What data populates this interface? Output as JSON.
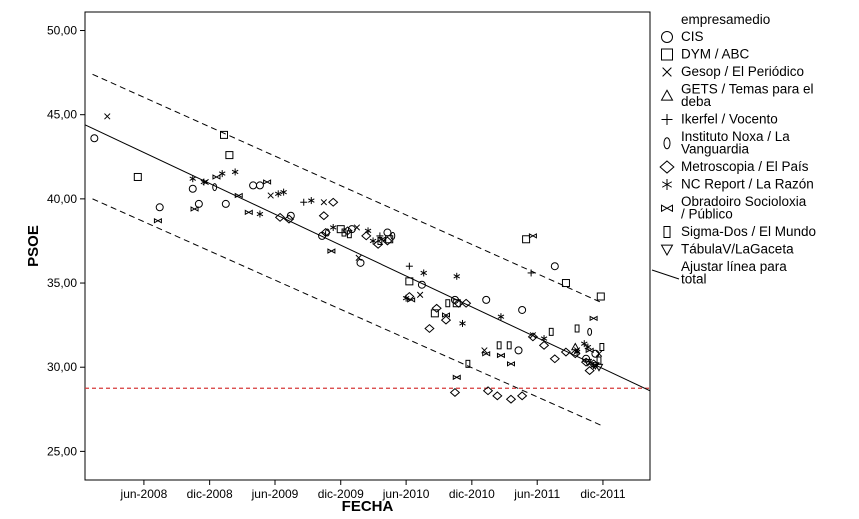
{
  "chart_data": {
    "type": "scatter",
    "xlabel": "FECHA",
    "ylabel": "PSOE",
    "x_ticks": [
      "jun-2008",
      "dic-2008",
      "jun-2009",
      "dic-2009",
      "jun-2010",
      "dic-2010",
      "jun-2011",
      "dic-2011"
    ],
    "y_ticks": [
      "25,00",
      "30,00",
      "35,00",
      "40,00",
      "45,00",
      "50,00"
    ],
    "xlim": [
      "2007-12-20",
      "2012-04-10"
    ],
    "ylim": [
      23.3,
      51.1
    ],
    "legend_title": "empresamedio",
    "legend_fit_label": "Ajustar línea para total",
    "reference_line": {
      "y": 28.75,
      "color": "#d63a3a"
    },
    "fit_line": {
      "x": [
        "2007-12-20",
        "2012-04-10"
      ],
      "y": [
        44.4,
        28.6
      ]
    },
    "ci_lower": {
      "x": [
        "2008-01-10",
        "2011-12-01"
      ],
      "y": [
        40.0,
        26.5
      ]
    },
    "ci_upper": {
      "x": [
        "2008-01-10",
        "2011-12-01"
      ],
      "y": [
        47.4,
        33.8
      ]
    },
    "series": [
      {
        "name": "CIS",
        "marker": "circle",
        "points": [
          [
            "2008-01-15",
            43.6
          ],
          [
            "2008-07-15",
            39.5
          ],
          [
            "2008-10-15",
            40.6
          ],
          [
            "2008-11-01",
            39.7
          ],
          [
            "2009-01-15",
            39.7
          ],
          [
            "2009-04-01",
            40.8
          ],
          [
            "2009-04-20",
            40.8
          ],
          [
            "2009-07-15",
            39.0
          ],
          [
            "2009-10-10",
            37.8
          ],
          [
            "2010-01-01",
            38.2
          ],
          [
            "2010-01-25",
            36.2
          ],
          [
            "2010-04-10",
            38.0
          ],
          [
            "2010-07-15",
            34.9
          ],
          [
            "2010-10-15",
            34.0
          ],
          [
            "2011-01-10",
            34.0
          ],
          [
            "2011-04-10",
            31.0
          ],
          [
            "2011-04-20",
            33.4
          ],
          [
            "2011-07-20",
            36.0
          ],
          [
            "2011-10-15",
            30.5
          ],
          [
            "2011-11-10",
            30.8
          ]
        ]
      },
      {
        "name": "DYM / ABC",
        "marker": "square",
        "points": [
          [
            "2008-05-15",
            41.3
          ],
          [
            "2009-01-10",
            43.8
          ],
          [
            "2009-01-25",
            42.6
          ],
          [
            "2009-12-01",
            38.2
          ],
          [
            "2010-04-15",
            37.6
          ],
          [
            "2010-06-10",
            35.1
          ],
          [
            "2010-08-20",
            33.2
          ],
          [
            "2010-10-20",
            33.8
          ],
          [
            "2011-05-01",
            37.6
          ],
          [
            "2011-08-20",
            35.0
          ],
          [
            "2011-11-25",
            34.2
          ]
        ]
      },
      {
        "name": "Gesop / El Periódico",
        "marker": "x",
        "points": [
          [
            "2008-02-20",
            44.9
          ],
          [
            "2008-11-20",
            41.0
          ],
          [
            "2009-05-20",
            40.2
          ],
          [
            "2009-10-15",
            39.8
          ],
          [
            "2010-01-15",
            38.3
          ],
          [
            "2010-01-20",
            36.5
          ],
          [
            "2010-07-10",
            34.3
          ],
          [
            "2011-01-05",
            31.0
          ],
          [
            "2011-05-20",
            31.9
          ],
          [
            "2011-09-20",
            31.0
          ],
          [
            "2011-11-20",
            30.8
          ]
        ]
      },
      {
        "name": "GETS / Temas para el deba",
        "marker": "triangle-up",
        "points": [
          [
            "2011-09-15",
            31.2
          ]
        ]
      },
      {
        "name": "Ikerfel / Vocento",
        "marker": "plus",
        "points": [
          [
            "2009-08-20",
            39.8
          ],
          [
            "2010-03-20",
            37.8
          ],
          [
            "2010-06-10",
            36.0
          ],
          [
            "2011-05-15",
            35.6
          ]
        ]
      },
      {
        "name": "Instituto Noxa / La Vanguardia",
        "marker": "ellipse",
        "points": [
          [
            "2008-12-15",
            40.7
          ],
          [
            "2009-10-25",
            38.0
          ],
          [
            "2010-04-25",
            37.8
          ],
          [
            "2011-10-25",
            32.1
          ]
        ]
      },
      {
        "name": "Metroscopia / El País",
        "marker": "diamond",
        "points": [
          [
            "2009-06-15",
            38.9
          ],
          [
            "2009-07-10",
            38.8
          ],
          [
            "2009-10-15",
            39.0
          ],
          [
            "2009-10-20",
            38.0
          ],
          [
            "2009-11-10",
            39.8
          ],
          [
            "2009-12-20",
            38.1
          ],
          [
            "2010-02-10",
            37.8
          ],
          [
            "2010-03-15",
            37.3
          ],
          [
            "2010-04-10",
            37.5
          ],
          [
            "2010-06-10",
            34.2
          ],
          [
            "2010-08-05",
            32.3
          ],
          [
            "2010-08-25",
            33.5
          ],
          [
            "2010-09-20",
            32.8
          ],
          [
            "2010-10-15",
            28.5
          ],
          [
            "2010-10-25",
            33.8
          ],
          [
            "2010-11-15",
            33.8
          ],
          [
            "2011-01-15",
            28.6
          ],
          [
            "2011-02-10",
            28.3
          ],
          [
            "2011-03-20",
            28.1
          ],
          [
            "2011-04-20",
            28.3
          ],
          [
            "2011-05-20",
            31.8
          ],
          [
            "2011-06-20",
            31.3
          ],
          [
            "2011-07-20",
            30.5
          ],
          [
            "2011-08-20",
            30.9
          ],
          [
            "2011-09-15",
            30.8
          ],
          [
            "2011-10-15",
            30.3
          ],
          [
            "2011-10-25",
            29.8
          ],
          [
            "2011-11-05",
            30.2
          ]
        ]
      },
      {
        "name": "NC Report / La Razón",
        "marker": "asterisk",
        "points": [
          [
            "2008-10-15",
            41.2
          ],
          [
            "2008-11-15",
            41.0
          ],
          [
            "2009-01-05",
            41.5
          ],
          [
            "2009-02-10",
            41.6
          ],
          [
            "2009-04-20",
            39.1
          ],
          [
            "2009-06-10",
            40.3
          ],
          [
            "2009-06-25",
            40.4
          ],
          [
            "2009-09-10",
            39.9
          ],
          [
            "2009-11-10",
            38.3
          ],
          [
            "2010-02-15",
            38.1
          ],
          [
            "2010-03-01",
            37.5
          ],
          [
            "2010-06-01",
            34.1
          ],
          [
            "2010-07-20",
            35.6
          ],
          [
            "2010-10-20",
            35.4
          ],
          [
            "2010-11-05",
            32.6
          ],
          [
            "2011-02-20",
            33.0
          ],
          [
            "2011-06-20",
            31.7
          ],
          [
            "2011-09-20",
            30.9
          ],
          [
            "2011-10-10",
            31.4
          ],
          [
            "2011-10-20",
            31.2
          ],
          [
            "2011-11-05",
            30.1
          ]
        ]
      },
      {
        "name": "Obradoiro Socioloxia / Público",
        "marker": "bowtie",
        "points": [
          [
            "2008-07-10",
            38.7
          ],
          [
            "2008-10-20",
            39.4
          ],
          [
            "2008-12-20",
            41.3
          ],
          [
            "2009-02-20",
            40.2
          ],
          [
            "2009-03-20",
            39.2
          ],
          [
            "2009-05-10",
            41.0
          ],
          [
            "2009-11-05",
            36.9
          ],
          [
            "2010-03-25",
            37.6
          ],
          [
            "2010-06-15",
            34.0
          ],
          [
            "2010-09-20",
            33.1
          ],
          [
            "2010-10-20",
            29.4
          ],
          [
            "2011-01-10",
            30.8
          ],
          [
            "2011-02-20",
            30.7
          ],
          [
            "2011-03-20",
            30.2
          ],
          [
            "2011-05-20",
            37.8
          ],
          [
            "2011-10-25",
            31.0
          ],
          [
            "2011-11-05",
            32.9
          ]
        ]
      },
      {
        "name": "Sigma-Dos / El Mundo",
        "marker": "tall-rect",
        "points": [
          [
            "2009-12-10",
            38.0
          ],
          [
            "2009-12-25",
            37.9
          ],
          [
            "2010-03-20",
            37.5
          ],
          [
            "2010-09-25",
            33.8
          ],
          [
            "2010-11-20",
            30.2
          ],
          [
            "2011-02-15",
            31.3
          ],
          [
            "2011-03-15",
            31.3
          ],
          [
            "2011-07-10",
            32.1
          ],
          [
            "2011-09-20",
            32.3
          ],
          [
            "2011-11-20",
            30.4
          ],
          [
            "2011-11-28",
            31.2
          ]
        ]
      },
      {
        "name": "TábulaV/LaGaceta",
        "marker": "triangle-down",
        "points": [
          [
            "2011-10-20",
            30.3
          ],
          [
            "2011-11-10",
            30.1
          ],
          [
            "2011-11-20",
            30.0
          ]
        ]
      }
    ]
  }
}
